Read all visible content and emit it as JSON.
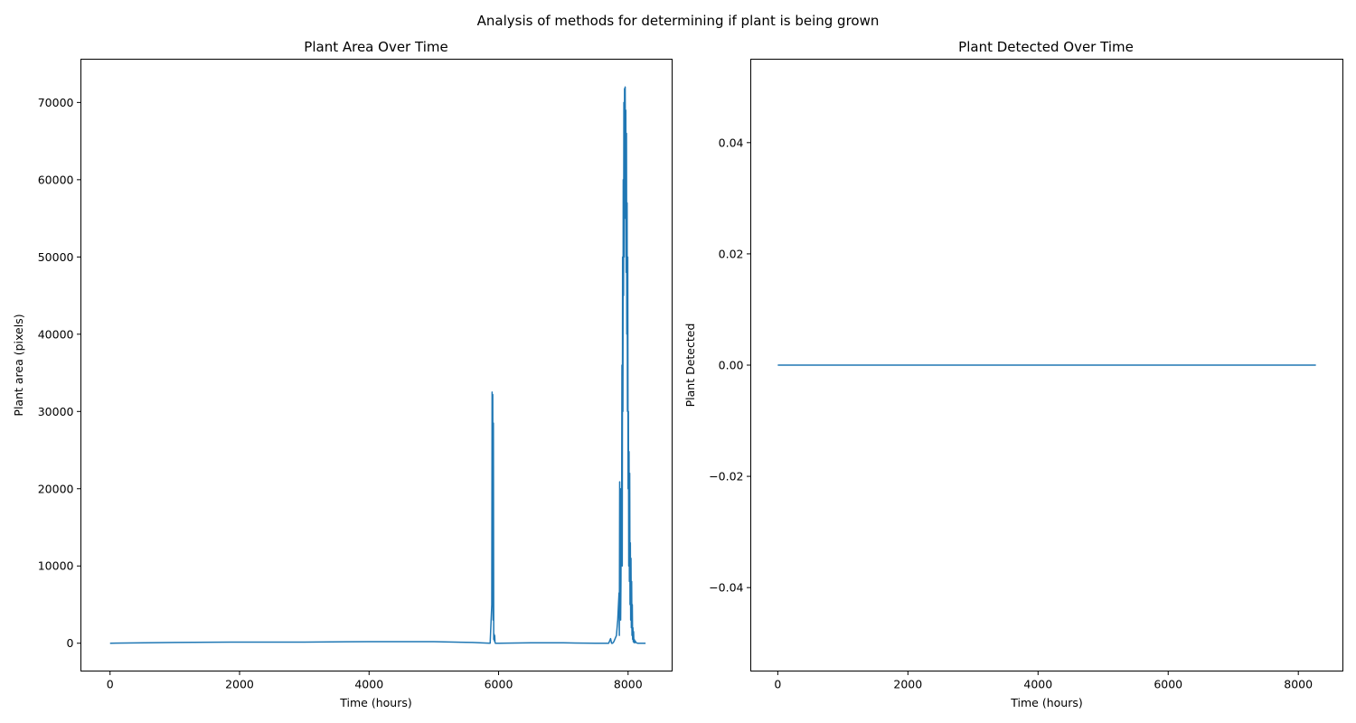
{
  "figure": {
    "title": "Analysis of methods for determining if plant is being grown"
  },
  "chart_data": [
    {
      "type": "line",
      "title": "Plant Area Over Time",
      "xlabel": "Time (hours)",
      "ylabel": "Plant area (pixels)",
      "xlim": [
        -450,
        8680
      ],
      "ylim": [
        -3600,
        75600
      ],
      "xticks": [
        0,
        2000,
        4000,
        6000,
        8000
      ],
      "yticks": [
        0,
        10000,
        20000,
        30000,
        40000,
        50000,
        60000,
        70000
      ],
      "series": [
        {
          "color": "#1f77b4",
          "x": [
            0,
            1000,
            2000,
            3000,
            4000,
            5000,
            5600,
            5870,
            5895,
            5900,
            5905,
            5910,
            5915,
            5920,
            5925,
            5930,
            5935,
            5940,
            5945,
            5950,
            6000,
            6500,
            7000,
            7500,
            7700,
            7730,
            7745,
            7760,
            7780,
            7820,
            7840,
            7860,
            7865,
            7870,
            7875,
            7880,
            7885,
            7890,
            7895,
            7900,
            7905,
            7910,
            7915,
            7920,
            7925,
            7930,
            7935,
            7940,
            7945,
            7950,
            7955,
            7960,
            7965,
            7970,
            7975,
            7980,
            7985,
            7990,
            7995,
            8000,
            8005,
            8010,
            8015,
            8020,
            8025,
            8030,
            8035,
            8040,
            8045,
            8050,
            8055,
            8060,
            8065,
            8070,
            8075,
            8080,
            8085,
            8090,
            8095,
            8100,
            8110,
            8120,
            8130,
            8150,
            8200,
            8250,
            8270
          ],
          "y": [
            0,
            100,
            150,
            150,
            200,
            200,
            100,
            0,
            5000,
            32500,
            15000,
            32200,
            3000,
            28500,
            500,
            1200,
            300,
            1000,
            100,
            0,
            0,
            50,
            50,
            0,
            0,
            600,
            0,
            0,
            200,
            1000,
            3000,
            6500,
            1000,
            20900,
            5000,
            20000,
            3000,
            8000,
            20000,
            15000,
            36000,
            10000,
            50000,
            30000,
            60000,
            45000,
            70000,
            50000,
            71800,
            55000,
            72000,
            60000,
            69000,
            48000,
            66000,
            40000,
            57000,
            30000,
            50000,
            20000,
            30000,
            10000,
            24800,
            8000,
            22000,
            5000,
            13000,
            3000,
            11000,
            2000,
            8000,
            1000,
            5000,
            500,
            2000,
            200,
            1500,
            100,
            500,
            50,
            300,
            100,
            50,
            0,
            0,
            0,
            0
          ]
        }
      ]
    },
    {
      "type": "line",
      "title": "Plant Detected Over Time",
      "xlabel": "Time (hours)",
      "ylabel": "Plant Detected",
      "xlim": [
        -415,
        8685
      ],
      "ylim": [
        -0.055,
        0.055
      ],
      "xticks": [
        0,
        2000,
        4000,
        6000,
        8000
      ],
      "yticks": [
        -0.04,
        -0.02,
        0.0,
        0.02,
        0.04
      ],
      "yticklabels": [
        "−0.04",
        "−0.02",
        "0.00",
        "0.02",
        "0.04"
      ],
      "series": [
        {
          "color": "#1f77b4",
          "x": [
            0,
            8270
          ],
          "y": [
            0,
            0
          ]
        }
      ]
    }
  ]
}
